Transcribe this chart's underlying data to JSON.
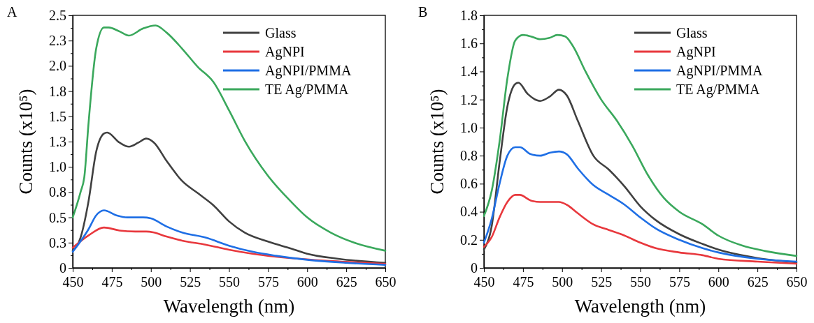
{
  "chart_data": [
    {
      "type": "line",
      "annotations": [
        "A"
      ],
      "xlabel": "Wavelength (nm)",
      "ylabel": "Counts (x10⁵)",
      "xlim": [
        450,
        650
      ],
      "ylim": [
        0,
        2.5
      ],
      "xticks": [
        450,
        {
          "value": 462.5,
          "label": null
        },
        475,
        {
          "value": 487.5,
          "label": null
        },
        500,
        {
          "value": 512.5,
          "label": null
        },
        525,
        {
          "value": 537.5,
          "label": null
        },
        550,
        {
          "value": 562.5,
          "label": null
        },
        575,
        {
          "value": 587.5,
          "label": null
        },
        600,
        {
          "value": 612.5,
          "label": null
        },
        625,
        {
          "value": 637.5,
          "label": null
        },
        650
      ],
      "yticks": [
        0,
        {
          "value": 0.125,
          "label": null
        },
        {
          "value": 0.25,
          "label": "0.3"
        },
        {
          "value": 0.375,
          "label": null
        },
        0.5,
        {
          "value": 0.625,
          "label": null
        },
        {
          "value": 0.75,
          "label": "0.8"
        },
        {
          "value": 0.875,
          "label": null
        },
        {
          "value": 1,
          "label": "1.0"
        },
        {
          "value": 1.125,
          "label": null
        },
        {
          "value": 1.25,
          "label": "1.3"
        },
        {
          "value": 1.375,
          "label": null
        },
        1.5,
        {
          "value": 1.625,
          "label": null
        },
        {
          "value": 1.75,
          "label": "1.8"
        },
        {
          "value": 1.875,
          "label": null
        },
        {
          "value": 2,
          "label": "2.0"
        },
        {
          "value": 2.125,
          "label": null
        },
        {
          "value": 2.25,
          "label": "2.3"
        },
        {
          "value": 2.375,
          "label": null
        },
        2.5
      ],
      "grid": false,
      "legend": "top right",
      "line_style": "solid",
      "marker": "none",
      "series": [
        {
          "name": "Glass",
          "color": "#404040",
          "x": [
            450,
            455,
            460,
            465,
            470,
            472,
            480,
            486,
            492,
            497,
            502,
            510,
            520,
            530,
            540,
            550,
            560,
            575,
            590,
            600,
            620,
            650
          ],
          "values": [
            0.17,
            0.3,
            0.65,
            1.15,
            1.33,
            1.34,
            1.24,
            1.2,
            1.24,
            1.28,
            1.24,
            1.06,
            0.86,
            0.74,
            0.62,
            0.46,
            0.35,
            0.26,
            0.19,
            0.14,
            0.09,
            0.05
          ]
        },
        {
          "name": "AgNPI",
          "color": "#e8383d",
          "x": [
            450,
            460,
            470,
            480,
            490,
            497,
            502,
            510,
            520,
            535,
            550,
            565,
            580,
            600,
            625,
            650
          ],
          "values": [
            0.2,
            0.32,
            0.4,
            0.37,
            0.36,
            0.36,
            0.35,
            0.31,
            0.27,
            0.23,
            0.18,
            0.14,
            0.11,
            null,
            0.06,
            0.04
          ]
        },
        {
          "name": "AgNPI/PMMA",
          "color": "#1f6fe5",
          "x": [
            450,
            460,
            465,
            470,
            478,
            485,
            495,
            500,
            510,
            520,
            535,
            550,
            565,
            580,
            600,
            625,
            650
          ],
          "values": [
            0.16,
            0.38,
            0.52,
            0.57,
            0.52,
            0.5,
            0.5,
            0.49,
            0.41,
            0.35,
            0.3,
            0.22,
            0.16,
            0.12,
            0.08,
            0.05,
            0.03
          ]
        },
        {
          "name": "TE Ag/PMMA",
          "color": "#3aa85c",
          "x": [
            450,
            455,
            457.5,
            460,
            465,
            470,
            473,
            480,
            486,
            495,
            503,
            510,
            520,
            530,
            540,
            550,
            560,
            575,
            590,
            600,
            615,
            630,
            650
          ],
          "values": [
            0.5,
            0.75,
            0.91,
            1.41,
            2.17,
            2.38,
            2.38,
            2.34,
            2.3,
            2.37,
            2.4,
            2.33,
            2.17,
            1.99,
            1.84,
            1.56,
            1.26,
            0.91,
            0.65,
            0.5,
            0.35,
            0.25,
            0.17
          ]
        }
      ]
    },
    {
      "type": "line",
      "annotations": [
        "B"
      ],
      "xlabel": "Wavelength (nm)",
      "ylabel": "Counts (x10⁵)",
      "xlim": [
        450,
        650
      ],
      "ylim": [
        0,
        1.8
      ],
      "xticks": [
        450,
        {
          "value": 462.5,
          "label": null
        },
        475,
        {
          "value": 487.5,
          "label": null
        },
        500,
        {
          "value": 512.5,
          "label": null
        },
        525,
        {
          "value": 537.5,
          "label": null
        },
        550,
        {
          "value": 562.5,
          "label": null
        },
        575,
        {
          "value": 587.5,
          "label": null
        },
        600,
        {
          "value": 612.5,
          "label": null
        },
        625,
        {
          "value": 637.5,
          "label": null
        },
        650
      ],
      "yticks": [
        0,
        {
          "value": 0.1,
          "label": null
        },
        0.2,
        {
          "value": 0.3,
          "label": null
        },
        0.4,
        {
          "value": 0.5,
          "label": null
        },
        0.6,
        {
          "value": 0.7,
          "label": null
        },
        0.8,
        {
          "value": 0.9,
          "label": null
        },
        {
          "value": 1,
          "label": "1.0"
        },
        {
          "value": 1.1,
          "label": null
        },
        1.2,
        {
          "value": 1.3,
          "label": null
        },
        1.4,
        {
          "value": 1.5,
          "label": null
        },
        1.6,
        {
          "value": 1.7,
          "label": null
        },
        1.8
      ],
      "grid": false,
      "legend": "top right",
      "line_style": "solid",
      "marker": "none",
      "series": [
        {
          "name": "Glass",
          "color": "#404040",
          "x": [
            450,
            455,
            460,
            465,
            470,
            472,
            478,
            486,
            492,
            498,
            503,
            510,
            520,
            530,
            540,
            550,
            560,
            575,
            590,
            600,
            625,
            650
          ],
          "values": [
            0.13,
            0.3,
            0.75,
            1.15,
            1.31,
            1.32,
            1.24,
            1.19,
            1.22,
            1.27,
            1.23,
            1.05,
            0.8,
            0.7,
            0.58,
            0.44,
            0.34,
            0.24,
            0.17,
            0.13,
            0.07,
            0.04
          ]
        },
        {
          "name": "AgNPI",
          "color": "#e8383d",
          "x": [
            450,
            455,
            460,
            465,
            470,
            473,
            480,
            486,
            492,
            498,
            503,
            510,
            520,
            530,
            540,
            550,
            560,
            575,
            590,
            600,
            625,
            650
          ],
          "values": [
            0.15,
            0.22,
            0.36,
            0.47,
            0.52,
            0.52,
            0.48,
            0.47,
            0.47,
            0.47,
            0.45,
            0.39,
            0.31,
            0.27,
            0.23,
            0.18,
            0.14,
            0.11,
            0.09,
            0.065,
            0.045,
            0.03
          ]
        },
        {
          "name": "AgNPI/PMMA",
          "color": "#1f6fe5",
          "x": [
            450,
            455,
            460,
            465,
            470,
            473,
            480,
            486,
            492,
            498,
            503,
            510,
            520,
            530,
            540,
            550,
            560,
            575,
            590,
            600,
            625,
            650
          ],
          "values": [
            0.18,
            0.35,
            0.6,
            0.8,
            0.86,
            0.86,
            0.81,
            0.8,
            0.82,
            0.83,
            0.81,
            0.71,
            0.59,
            0.52,
            0.45,
            0.36,
            0.28,
            0.2,
            0.14,
            0.11,
            0.065,
            0.045
          ]
        },
        {
          "name": "TE Ag/PMMA",
          "color": "#3aa85c",
          "x": [
            450,
            455,
            460,
            465,
            470,
            475,
            480,
            486,
            492,
            497,
            502,
            507,
            515,
            525,
            535,
            545,
            555,
            565,
            575,
            590,
            600,
            615,
            630,
            650
          ],
          "values": [
            0.37,
            0.55,
            0.9,
            1.35,
            1.62,
            1.66,
            1.65,
            1.63,
            1.64,
            1.66,
            1.65,
            1.58,
            1.4,
            1.2,
            1.05,
            0.87,
            0.66,
            0.5,
            0.4,
            0.31,
            0.23,
            0.16,
            0.12,
            0.085
          ]
        }
      ]
    }
  ]
}
